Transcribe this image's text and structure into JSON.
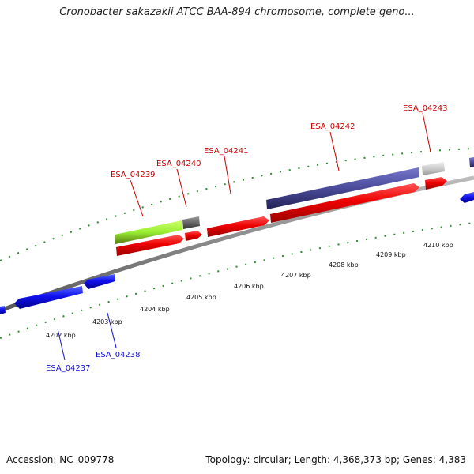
{
  "title": "Cronobacter sakazakii ATCC BAA-894 chromosome, complete geno...",
  "accession_label": "Accession: NC_009778",
  "summary_label": "Topology: circular; Length: 4,368,373 bp; Genes: 4,383",
  "scale_labels": [
    "4202 kbp",
    "4203 kbp",
    "4204 kbp",
    "4205 kbp",
    "4206 kbp",
    "4207 kbp",
    "4208 kbp",
    "4209 kbp",
    "4210 kbp"
  ],
  "gene_labels": {
    "top": [
      "ESA_04239",
      "ESA_04240",
      "ESA_04241",
      "ESA_04242",
      "ESA_04243"
    ],
    "bottom": [
      "ESA_04237",
      "ESA_04238"
    ]
  },
  "colors": {
    "forward_cds": "#ee0000",
    "reverse_cds": "#1111ee",
    "label_forward": "#cc0000",
    "label_reverse": "#1111cc",
    "backbone": "#8c8c8c",
    "tick": "#2e8b2e",
    "feature_green": "#99ee33",
    "feature_purple": "#4a4a99",
    "feature_dark_gray": "#666666",
    "feature_light_gray": "#cccccc"
  }
}
